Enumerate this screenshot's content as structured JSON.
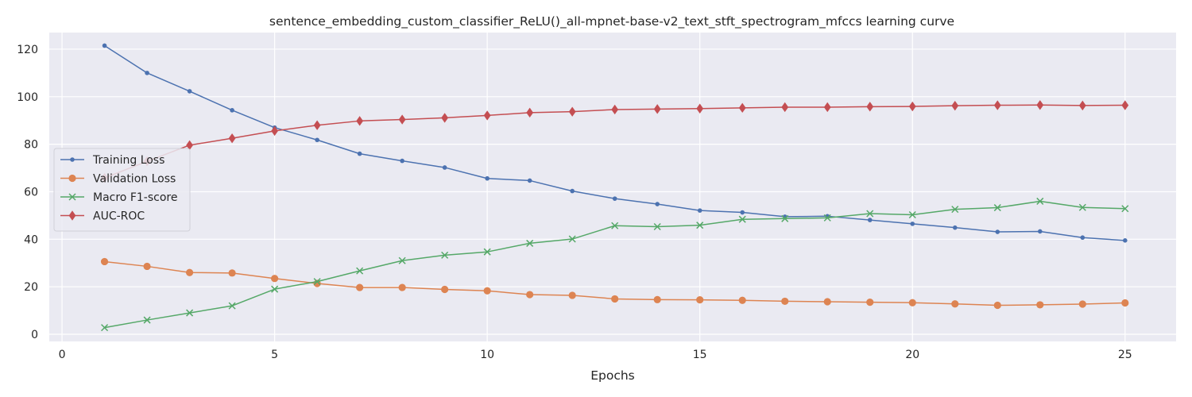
{
  "chart_data": {
    "type": "line",
    "title": "sentence_embedding_custom_classifier_ReLU()_all-mpnet-base-v2_text_stft_spectrogram_mfccs learning curve",
    "xlabel": "Epochs",
    "ylabel": "",
    "xlim": [
      -0.3,
      26.2
    ],
    "ylim": [
      -3,
      127
    ],
    "xticks": [
      0,
      5,
      10,
      15,
      20,
      25
    ],
    "yticks": [
      0,
      20,
      40,
      60,
      80,
      100,
      120
    ],
    "grid": true,
    "legend_position": "center-left",
    "x": [
      1,
      2,
      3,
      4,
      5,
      6,
      7,
      8,
      9,
      10,
      11,
      12,
      13,
      14,
      15,
      16,
      17,
      18,
      19,
      20,
      21,
      22,
      23,
      24,
      25
    ],
    "series": [
      {
        "name": "Training Loss",
        "color": "#4c72b0",
        "marker": "dot",
        "values": [
          121.5,
          110.0,
          102.3,
          94.3,
          87.0,
          81.8,
          76.0,
          73.0,
          70.2,
          65.6,
          64.7,
          60.3,
          57.1,
          54.8,
          52.1,
          51.3,
          49.5,
          49.7,
          48.1,
          46.5,
          44.9,
          43.1,
          43.3,
          40.7,
          39.5
        ]
      },
      {
        "name": "Validation Loss",
        "color": "#dd8452",
        "marker": "circle",
        "values": [
          30.6,
          28.6,
          26.0,
          25.8,
          23.5,
          21.4,
          19.7,
          19.7,
          18.9,
          18.3,
          16.7,
          16.4,
          14.9,
          14.6,
          14.5,
          14.3,
          13.9,
          13.7,
          13.5,
          13.3,
          12.8,
          12.2,
          12.4,
          12.7,
          13.2
        ]
      },
      {
        "name": "Macro F1-score",
        "color": "#55a868",
        "marker": "x",
        "values": [
          2.8,
          6.0,
          9.0,
          12.0,
          19.0,
          22.2,
          26.7,
          31.0,
          33.3,
          34.7,
          38.3,
          40.1,
          45.7,
          45.3,
          45.9,
          48.4,
          48.7,
          49.0,
          50.8,
          50.3,
          52.6,
          53.3,
          56.0,
          53.4,
          52.9
        ]
      },
      {
        "name": "AUC-ROC",
        "color": "#c44e52",
        "marker": "diamond",
        "values": [
          65.8,
          72.8,
          79.6,
          82.5,
          85.6,
          88.0,
          89.8,
          90.4,
          91.1,
          92.1,
          93.3,
          93.7,
          94.6,
          94.8,
          95.0,
          95.3,
          95.6,
          95.6,
          95.8,
          95.9,
          96.2,
          96.4,
          96.5,
          96.3,
          96.4
        ]
      }
    ]
  }
}
